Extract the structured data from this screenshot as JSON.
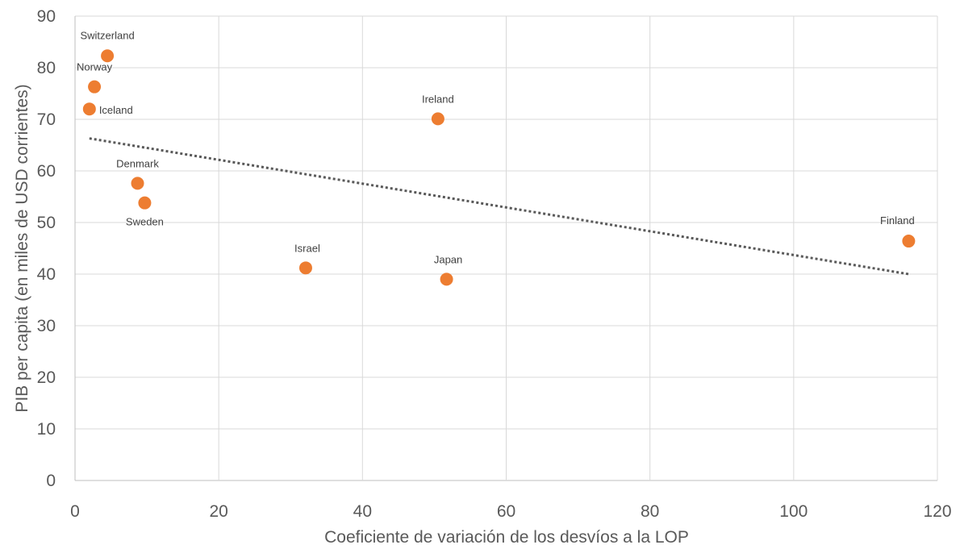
{
  "chart_data": {
    "type": "scatter",
    "xlabel": "Coeficiente de variación de los desvíos a la LOP",
    "ylabel": "PIB per capita (en miles de USD corrientes)",
    "xlim": [
      0,
      120
    ],
    "ylim": [
      0,
      90
    ],
    "x_ticks": [
      0,
      20,
      40,
      60,
      80,
      100,
      120
    ],
    "y_ticks": [
      0,
      10,
      20,
      30,
      40,
      50,
      60,
      70,
      80,
      90
    ],
    "grid": true,
    "legend": "none",
    "point_color": "#ED7D31",
    "points": [
      {
        "label": "Switzerland",
        "x": 4.5,
        "y": 82.3
      },
      {
        "label": "Norway",
        "x": 2.7,
        "y": 76.3
      },
      {
        "label": "Iceland",
        "x": 2.0,
        "y": 72.0
      },
      {
        "label": "Denmark",
        "x": 8.7,
        "y": 57.6
      },
      {
        "label": "Sweden",
        "x": 9.7,
        "y": 53.8
      },
      {
        "label": "Ireland",
        "x": 50.5,
        "y": 70.1
      },
      {
        "label": "Israel",
        "x": 32.1,
        "y": 41.2
      },
      {
        "label": "Japan",
        "x": 51.7,
        "y": 39.0
      },
      {
        "label": "Finland",
        "x": 116.0,
        "y": 46.4
      }
    ],
    "trendline": {
      "type": "linear",
      "x": [
        2,
        116
      ],
      "y": [
        66.3,
        40.0
      ]
    }
  }
}
